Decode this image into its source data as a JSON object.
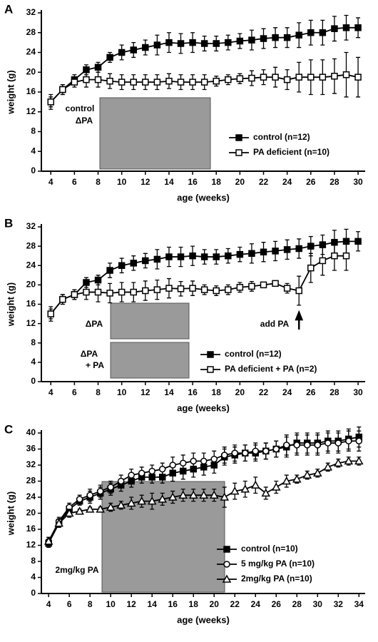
{
  "chart_data": [
    {
      "type": "line",
      "panel": "A",
      "x_label": "age (weeks)",
      "y_label": "weight (g)",
      "x": [
        4,
        5,
        6,
        7,
        8,
        9,
        10,
        11,
        12,
        13,
        14,
        15,
        16,
        17,
        18,
        19,
        20,
        21,
        22,
        23,
        24,
        25,
        26,
        27,
        28,
        29,
        30
      ],
      "xlim": [
        3.2,
        30.6
      ],
      "xticks": [
        4,
        6,
        8,
        10,
        12,
        14,
        16,
        18,
        20,
        22,
        24,
        26,
        28,
        30
      ],
      "ylim": [
        0,
        32
      ],
      "yticks": [
        0,
        4,
        8,
        12,
        16,
        20,
        24,
        28,
        32
      ],
      "legend": "lower right",
      "annotations": [
        "control",
        "ΔPA"
      ],
      "series": [
        {
          "name": "control (n=12)",
          "color": "#000000",
          "marker": "square-filled",
          "values": [
            14,
            16.5,
            18.5,
            20.5,
            21,
            23,
            24,
            24.5,
            25,
            25.5,
            26,
            25.8,
            26,
            25.8,
            25.8,
            26,
            26.3,
            26.5,
            26.8,
            27,
            27,
            27.5,
            28,
            28,
            28.8,
            29,
            29
          ],
          "errors": [
            1.5,
            1,
            1,
            1,
            1,
            1,
            1.5,
            1.5,
            1.5,
            2,
            2,
            2,
            2,
            1.5,
            1.5,
            1.5,
            1.5,
            2,
            2,
            2,
            2,
            2.5,
            2.5,
            2.5,
            2.5,
            2.5,
            2
          ]
        },
        {
          "name": "PA deficient (n=10)",
          "color": "#000000",
          "marker": "square-open",
          "values": [
            14,
            16.5,
            18,
            18.5,
            18.5,
            18.2,
            18,
            18,
            18,
            18,
            18.2,
            18,
            18,
            18,
            18.2,
            18.5,
            18.7,
            18.8,
            19,
            19,
            18.5,
            19,
            19,
            19,
            19.2,
            19.5,
            19
          ],
          "errors": [
            1,
            1,
            1,
            1.5,
            1.5,
            1.5,
            1.5,
            1.5,
            1.5,
            1.5,
            1.5,
            1.5,
            1.5,
            1.5,
            1,
            1,
            1,
            1.5,
            1.5,
            2,
            2,
            3,
            3.5,
            3.5,
            3.5,
            4.5,
            4
          ]
        }
      ]
    },
    {
      "type": "line",
      "panel": "B",
      "x_label": "age (weeks)",
      "y_label": "weight (g)",
      "x": [
        4,
        5,
        6,
        7,
        8,
        9,
        10,
        11,
        12,
        13,
        14,
        15,
        16,
        17,
        18,
        19,
        20,
        21,
        22,
        23,
        24,
        25,
        26,
        27,
        28,
        29,
        30
      ],
      "xlim": [
        3.2,
        30.6
      ],
      "xticks": [
        4,
        6,
        8,
        10,
        12,
        14,
        16,
        18,
        20,
        22,
        24,
        26,
        28,
        30
      ],
      "ylim": [
        0,
        32
      ],
      "yticks": [
        0,
        4,
        8,
        12,
        16,
        20,
        24,
        28,
        32
      ],
      "legend": "lower right",
      "annotations": [
        "ΔPA",
        "ΔPA",
        "+ PA",
        "add PA"
      ],
      "series": [
        {
          "name": "control (n=12)",
          "color": "#000000",
          "marker": "square-filled",
          "values": [
            14,
            17,
            18,
            20.5,
            21,
            23,
            24,
            24.5,
            25,
            25.3,
            25.8,
            25.8,
            26,
            25.8,
            25.8,
            26,
            26.3,
            26.5,
            26.8,
            27,
            27.3,
            27.5,
            28,
            28.3,
            28.8,
            29,
            29
          ],
          "errors": [
            1.5,
            1,
            1,
            1,
            1,
            1.5,
            1.5,
            1.5,
            1.5,
            2,
            2,
            2,
            2,
            1.5,
            1.5,
            1.5,
            1.5,
            2,
            2,
            2,
            2,
            2,
            2,
            2,
            2.5,
            2.5,
            2
          ]
        },
        {
          "name": "PA deficient + PA (n=2)",
          "color": "#000000",
          "marker": "square-open",
          "values": [
            14,
            17,
            18,
            18.5,
            18.5,
            18.3,
            18.5,
            18.5,
            18.8,
            19,
            19.3,
            19.2,
            19.3,
            19,
            18.8,
            19,
            19.5,
            19.7,
            20,
            20.3,
            19.3,
            18.8,
            23.5,
            25,
            26,
            26,
            null
          ],
          "errors": [
            1,
            1,
            1,
            1.5,
            2,
            2,
            2,
            2,
            2,
            2,
            2,
            1.5,
            1.5,
            1,
            1,
            1,
            1,
            1,
            0.5,
            0.5,
            1,
            3,
            3,
            3,
            3,
            3,
            null
          ]
        }
      ]
    },
    {
      "type": "line",
      "panel": "C",
      "x_label": "age (weeks)",
      "y_label": "weight (g)",
      "x": [
        4,
        5,
        6,
        7,
        8,
        9,
        10,
        11,
        12,
        13,
        14,
        15,
        16,
        17,
        18,
        19,
        20,
        21,
        22,
        23,
        24,
        25,
        26,
        27,
        28,
        29,
        30,
        31,
        32,
        33,
        34
      ],
      "xlim": [
        3.3,
        34.6
      ],
      "xticks": [
        4,
        6,
        8,
        10,
        12,
        14,
        16,
        18,
        20,
        22,
        24,
        26,
        28,
        30,
        32,
        34
      ],
      "ylim": [
        0,
        40
      ],
      "yticks": [
        0,
        4,
        8,
        12,
        16,
        20,
        24,
        28,
        32,
        36,
        40
      ],
      "legend": "lower right",
      "annotations": [
        "2mg/kg PA"
      ],
      "series": [
        {
          "name": "control (n=10)",
          "color": "#000000",
          "marker": "square-filled",
          "values": [
            12.5,
            17.5,
            21,
            23,
            24,
            25,
            26,
            27,
            28,
            29,
            29,
            29,
            30,
            30.5,
            31,
            31.5,
            32,
            34,
            34.5,
            35,
            35,
            35.5,
            36,
            36.5,
            37.5,
            37.5,
            37.5,
            38,
            38,
            38.5,
            39
          ],
          "errors": [
            1,
            1,
            1,
            1,
            1.5,
            1.5,
            1.5,
            1.5,
            1.5,
            1.5,
            1.5,
            1.5,
            2,
            2,
            2,
            2,
            2,
            2,
            2,
            2,
            2,
            2,
            2,
            2.5,
            2.5,
            2.5,
            2.5,
            2.5,
            2.5,
            2.5,
            2.5
          ]
        },
        {
          "name": "5 mg/kg PA (n=10)",
          "color": "#000000",
          "marker": "circle-open",
          "values": [
            13,
            18,
            21.5,
            23.5,
            24.5,
            25.5,
            26.5,
            28,
            29.5,
            30,
            30.5,
            31,
            32,
            32.5,
            33,
            33,
            33.5,
            34.5,
            35,
            35,
            35.5,
            35.5,
            36,
            37,
            37,
            37,
            37,
            37.5,
            37.5,
            38,
            38
          ],
          "errors": [
            1,
            1,
            1,
            1,
            1.5,
            1.5,
            1.5,
            1.5,
            1.5,
            1.5,
            1.5,
            1.5,
            2,
            2,
            2,
            2,
            2,
            2,
            2,
            2,
            2,
            2,
            2,
            2.5,
            2.5,
            2.5,
            2.5,
            2.5,
            2.5,
            2.5,
            2.5
          ]
        },
        {
          "name": "2mg/kg PA (n=10)",
          "color": "#000000",
          "marker": "triangle-open",
          "values": [
            13,
            17.5,
            20,
            20.5,
            21,
            21,
            21.5,
            22,
            22.5,
            23,
            23,
            23.5,
            24,
            24.5,
            24.5,
            24.5,
            24.5,
            24,
            25.5,
            26,
            27,
            25,
            26.5,
            28,
            28.5,
            29.5,
            30,
            31.5,
            32.5,
            33,
            33
          ],
          "errors": [
            1,
            1,
            1,
            0.5,
            0.5,
            0.5,
            1,
            1,
            1.5,
            1.5,
            2,
            1.5,
            1.5,
            1.5,
            1.5,
            1.5,
            1.5,
            2.5,
            2,
            2,
            2,
            1.5,
            1.5,
            1.5,
            1,
            1,
            1,
            1,
            1,
            1,
            1
          ]
        }
      ]
    }
  ]
}
